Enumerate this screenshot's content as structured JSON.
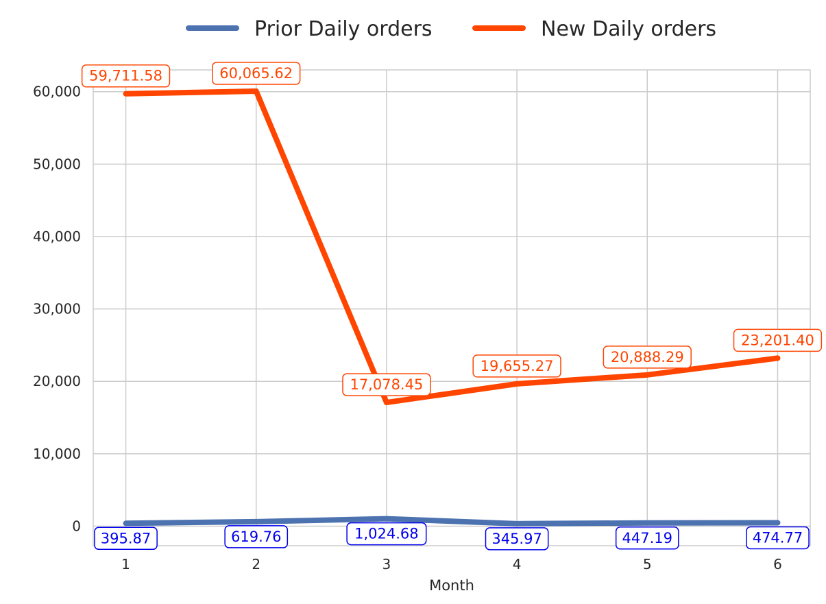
{
  "chart_data": {
    "type": "line",
    "title": "",
    "xlabel": "Month",
    "ylabel": "",
    "x": [
      1,
      2,
      3,
      4,
      5,
      6
    ],
    "x_tick_labels": [
      "1",
      "2",
      "3",
      "4",
      "5",
      "6"
    ],
    "ylim": [
      -2700,
      63000
    ],
    "y_ticks": [
      0,
      10000,
      20000,
      30000,
      40000,
      50000,
      60000
    ],
    "y_tick_labels": [
      "0",
      "10,000",
      "20,000",
      "30,000",
      "40,000",
      "50,000",
      "60,000"
    ],
    "grid": true,
    "legend_position": "top-center",
    "series": [
      {
        "name": "Prior Daily orders",
        "color": "#4C72B0",
        "label_color": "#0000EE",
        "label_position": "below",
        "values": [
          395.87,
          619.76,
          1024.68,
          345.97,
          447.19,
          474.77
        ],
        "data_labels": [
          "395.87",
          "619.76",
          "1,024.68",
          "345.97",
          "447.19",
          "474.77"
        ]
      },
      {
        "name": "New Daily orders",
        "color": "#FF4500",
        "label_color": "#FF4500",
        "label_position": "above",
        "values": [
          59711.58,
          60065.62,
          17078.45,
          19655.27,
          20888.29,
          23201.4
        ],
        "data_labels": [
          "59,711.58",
          "60,065.62",
          "17,078.45",
          "19,655.27",
          "20,888.29",
          "23,201.40"
        ]
      }
    ]
  }
}
